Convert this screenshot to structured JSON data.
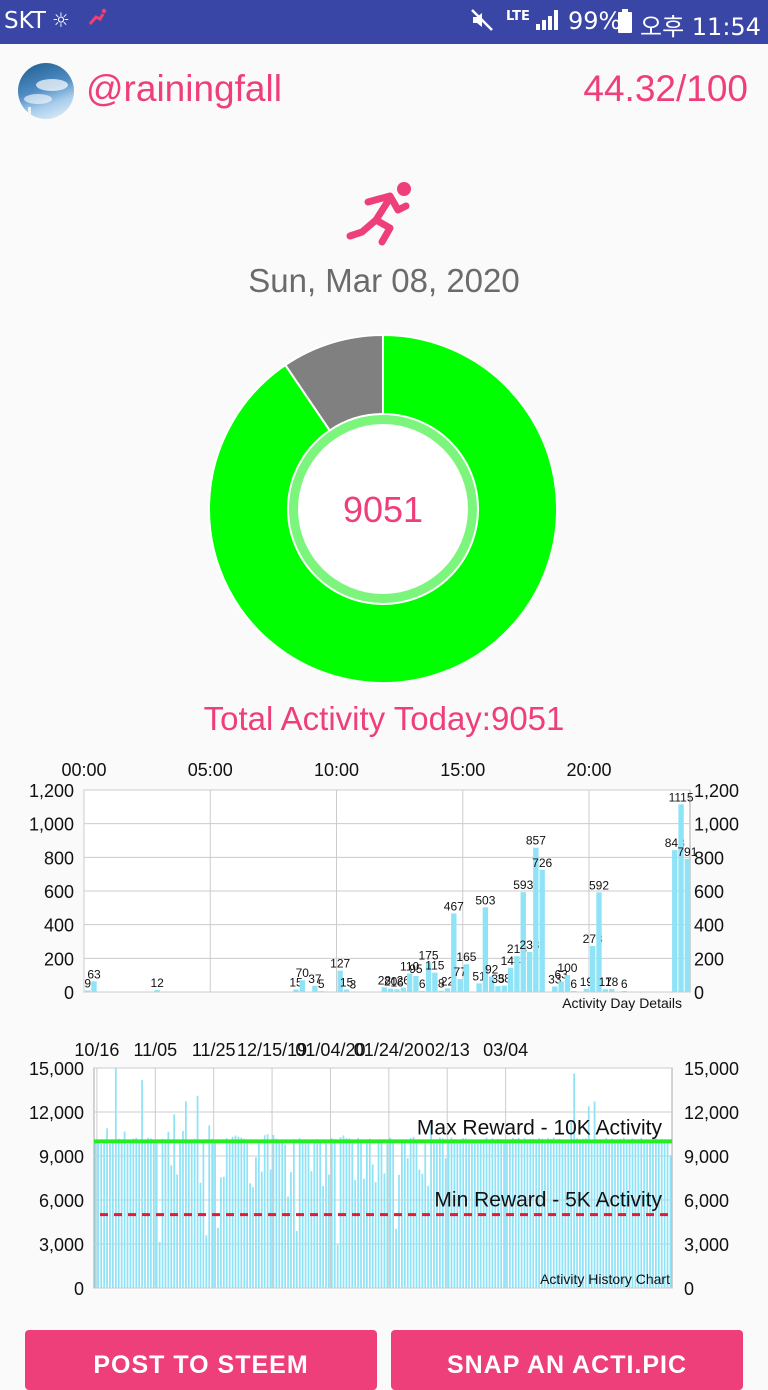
{
  "status_bar": {
    "carrier": "SKT",
    "network": "LTE",
    "battery": "99%",
    "time": "오후 11:54"
  },
  "header": {
    "username": "@rainingfall",
    "score": "44.32/100"
  },
  "main": {
    "date": "Sun, Mar 08, 2020",
    "today_value": "9051",
    "total_label": "Total Activity Today:9051"
  },
  "colors": {
    "accent": "#ee3f7b",
    "progress": "#00ff00",
    "remaining": "#808080",
    "bar": "#8fe3f7",
    "max_line": "#22ee22",
    "min_line": "#e8192c"
  },
  "chart_data": [
    {
      "type": "bar",
      "annotation": "Activity Day Details",
      "x_ticks": [
        "00:00",
        "05:00",
        "10:00",
        "15:00",
        "20:00"
      ],
      "x_tick_hours": [
        0,
        5,
        10,
        15,
        20
      ],
      "ylim": [
        0,
        1200
      ],
      "y_ticks": [
        0,
        200,
        400,
        600,
        800,
        1000,
        1200
      ],
      "y_tick_labels": [
        "0",
        "200",
        "400",
        "600",
        "800",
        "1,000",
        "1,200"
      ],
      "grid": true,
      "x_hours": [
        0.0,
        0.25,
        2.75,
        8.25,
        8.5,
        9.0,
        9.25,
        10.0,
        10.25,
        10.5,
        11.75,
        12.0,
        12.25,
        12.5,
        12.75,
        13.0,
        13.25,
        13.5,
        13.75,
        14.0,
        14.25,
        14.5,
        14.75,
        15.0,
        15.5,
        15.75,
        16.0,
        16.25,
        16.5,
        16.75,
        17.0,
        17.25,
        17.5,
        17.75,
        18.0,
        18.5,
        18.75,
        19.0,
        19.25,
        19.75,
        20.0,
        20.25,
        20.5,
        20.75,
        21.25,
        23.25,
        23.5,
        23.75
      ],
      "values": [
        9,
        63,
        12,
        15,
        70,
        37,
        5,
        127,
        15,
        3,
        28,
        20,
        16,
        26,
        110,
        95,
        6,
        175,
        115,
        8,
        22,
        467,
        77,
        165,
        51,
        503,
        92,
        35,
        38,
        144,
        213,
        593,
        238,
        857,
        726,
        33,
        63,
        100,
        6,
        19,
        273,
        592,
        17,
        18,
        6,
        843,
        1115,
        791
      ],
      "labels": [
        "9",
        "63",
        "12",
        "15",
        "70",
        "37",
        "5",
        "127",
        "15",
        "3",
        "28",
        "20",
        "16",
        "26",
        "110",
        "95",
        "6",
        "175",
        "115",
        "8",
        "22",
        "467",
        "77",
        "165",
        "51",
        "503",
        "92",
        "35",
        "38",
        "144",
        "213",
        "593",
        "238",
        "857",
        "726",
        "33",
        "63",
        "100",
        "6",
        "19",
        "273",
        "592",
        "17",
        "18",
        "6",
        "843",
        "1115",
        "791"
      ]
    },
    {
      "type": "bar",
      "annotation": "Activity History Chart",
      "x_ticks": [
        "10/16",
        "11/05",
        "11/25",
        "12/15/19",
        "01/04/20",
        "01/24/20",
        "02/13",
        "03/04"
      ],
      "ylim": [
        0,
        15000
      ],
      "y_ticks": [
        0,
        3000,
        6000,
        9000,
        12000,
        15000
      ],
      "y_tick_labels": [
        "0",
        "3,000",
        "6,000",
        "9,000",
        "12,000",
        "15,000"
      ],
      "grid": true,
      "reference_lines": [
        {
          "label": "Max Reward - 10K Activity",
          "value": 10000,
          "style": "solid"
        },
        {
          "label": "Min Reward - 5K Activity",
          "value": 5000,
          "style": "dashed"
        }
      ],
      "values": [
        10038,
        9959,
        9812,
        10047,
        10889,
        9843,
        10076,
        15020,
        10167,
        10015,
        10675,
        9831,
        9931,
        10183,
        10239,
        10050,
        14189,
        9953,
        10235,
        10198,
        9940,
        10000,
        3132,
        10170,
        9880,
        10653,
        8357,
        11845,
        7745,
        9854,
        10706,
        12728,
        10058,
        10049,
        10176,
        13108,
        7177,
        10009,
        3587,
        11084,
        10172,
        10085,
        4107,
        7546,
        7585,
        10221,
        10073,
        10310,
        10398,
        10315,
        10262,
        10180,
        10064,
        7135,
        6886,
        8917,
        9951,
        7935,
        10415,
        10482,
        8073,
        10437,
        10183,
        10090,
        9962,
        9784,
        6237,
        7903,
        10139,
        3885,
        10214,
        10098,
        9977,
        9931,
        7966,
        10034,
        10150,
        9993,
        6955,
        10054,
        7732,
        10209,
        10151,
        2948,
        10276,
        10399,
        10209,
        10200,
        10034,
        7369,
        10220,
        10046,
        7450,
        10006,
        10177,
        8418,
        7213,
        10081,
        9869,
        7815,
        9948,
        10247,
        10043,
        4039,
        7716,
        10047,
        9989,
        8860,
        10229,
        10305,
        9901,
        8075,
        7787,
        10004,
        6961,
        11100,
        10102,
        10144,
        10250,
        10208,
        8858,
        10087,
        10264,
        10151,
        10066,
        10043,
        10221,
        10200,
        10146,
        10062,
        10002,
        9870,
        10060,
        10140,
        10252,
        10123,
        10209,
        10009,
        10165,
        10024,
        10095,
        10033,
        10137,
        10242,
        10163,
        10231,
        10081,
        10218,
        10140,
        10172,
        10180,
        10140,
        10218,
        10177,
        10036,
        10213,
        10162,
        10254,
        10032,
        10173,
        10121,
        10097,
        10069,
        11300,
        14620,
        10207,
        10145,
        10175,
        10205,
        12392,
        10102,
        12716,
        10056,
        10141,
        9935,
        10221,
        10082,
        10186,
        10081,
        10078,
        10173,
        10249,
        10067,
        10078,
        10205,
        10139,
        10152,
        10238,
        10025,
        10074,
        10101,
        10164,
        10184,
        10072,
        10140,
        10143,
        10128,
        9051
      ]
    }
  ],
  "buttons": {
    "post": "POST TO STEEM",
    "snap": "SNAP AN ACTI.PIC"
  }
}
